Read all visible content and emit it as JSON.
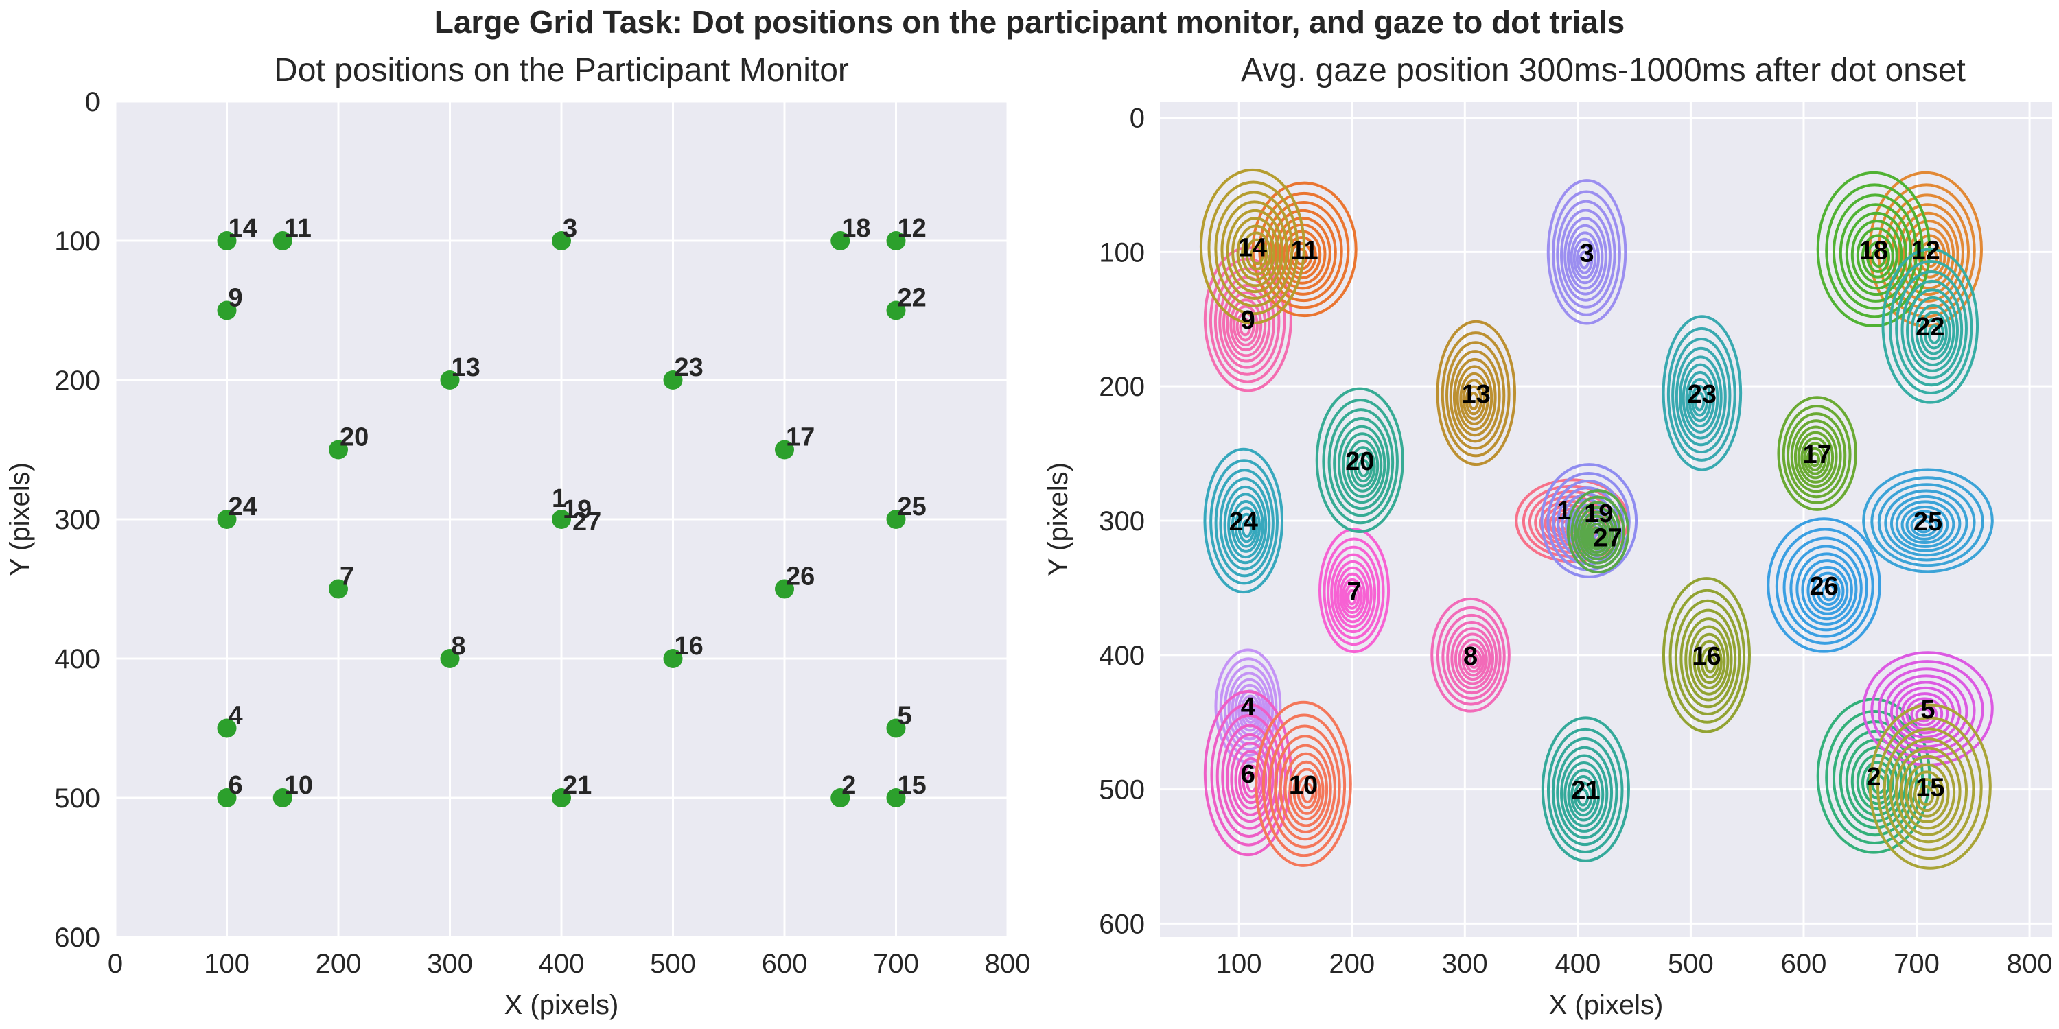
{
  "suptitle": "Large Grid Task: Dot positions on the participant monitor, and gaze to dot trials",
  "chart_data": [
    {
      "type": "scatter",
      "title": "Dot positions on the Participant Monitor",
      "xlabel": "X (pixels)",
      "ylabel": "Y (pixels)",
      "xlim": [
        0,
        800
      ],
      "ylim": [
        600,
        0
      ],
      "xticks": [
        0,
        100,
        200,
        300,
        400,
        500,
        600,
        700,
        800
      ],
      "yticks": [
        0,
        100,
        200,
        300,
        400,
        500,
        600
      ],
      "grid": true,
      "marker_color": "#2ca02c",
      "points": [
        {
          "label": "1",
          "x": 400,
          "y": 300
        },
        {
          "label": "2",
          "x": 650,
          "y": 500
        },
        {
          "label": "3",
          "x": 400,
          "y": 100
        },
        {
          "label": "4",
          "x": 100,
          "y": 450
        },
        {
          "label": "5",
          "x": 700,
          "y": 450
        },
        {
          "label": "6",
          "x": 100,
          "y": 500
        },
        {
          "label": "7",
          "x": 200,
          "y": 350
        },
        {
          "label": "8",
          "x": 300,
          "y": 400
        },
        {
          "label": "9",
          "x": 100,
          "y": 150
        },
        {
          "label": "10",
          "x": 150,
          "y": 500
        },
        {
          "label": "11",
          "x": 150,
          "y": 100
        },
        {
          "label": "12",
          "x": 700,
          "y": 100
        },
        {
          "label": "13",
          "x": 300,
          "y": 200
        },
        {
          "label": "14",
          "x": 100,
          "y": 100
        },
        {
          "label": "15",
          "x": 700,
          "y": 500
        },
        {
          "label": "16",
          "x": 500,
          "y": 400
        },
        {
          "label": "17",
          "x": 600,
          "y": 250
        },
        {
          "label": "18",
          "x": 650,
          "y": 100
        },
        {
          "label": "19",
          "x": 400,
          "y": 300
        },
        {
          "label": "20",
          "x": 200,
          "y": 250
        },
        {
          "label": "21",
          "x": 400,
          "y": 500
        },
        {
          "label": "22",
          "x": 700,
          "y": 150
        },
        {
          "label": "23",
          "x": 500,
          "y": 200
        },
        {
          "label": "24",
          "x": 100,
          "y": 300
        },
        {
          "label": "25",
          "x": 700,
          "y": 300
        },
        {
          "label": "26",
          "x": 600,
          "y": 350
        },
        {
          "label": "27",
          "x": 400,
          "y": 300
        }
      ]
    },
    {
      "type": "contour",
      "title": "Avg. gaze position 300ms-1000ms after dot onset",
      "xlabel": "X (pixels)",
      "ylabel": "Y (pixels)",
      "xlim": [
        30,
        820
      ],
      "ylim": [
        610,
        -12
      ],
      "xticks": [
        100,
        200,
        300,
        400,
        500,
        600,
        700,
        800
      ],
      "yticks": [
        0,
        100,
        200,
        300,
        400,
        500,
        600
      ],
      "grid": true,
      "clusters": [
        {
          "label": "1",
          "x": 395,
          "y": 300,
          "sx": 26,
          "sy": 16,
          "color": "#f77189"
        },
        {
          "label": "2",
          "x": 662,
          "y": 490,
          "sx": 26,
          "sy": 30,
          "color": "#33b07a"
        },
        {
          "label": "3",
          "x": 408,
          "y": 100,
          "sx": 18,
          "sy": 28,
          "color": "#9b8ef0"
        },
        {
          "label": "4",
          "x": 108,
          "y": 438,
          "sx": 15,
          "sy": 22,
          "color": "#c493f5"
        },
        {
          "label": "5",
          "x": 710,
          "y": 440,
          "sx": 30,
          "sy": 22,
          "color": "#dc5ae2"
        },
        {
          "label": "6",
          "x": 108,
          "y": 488,
          "sx": 20,
          "sy": 32,
          "color": "#ee5ec6"
        },
        {
          "label": "7",
          "x": 202,
          "y": 352,
          "sx": 16,
          "sy": 24,
          "color": "#f761d3"
        },
        {
          "label": "8",
          "x": 305,
          "y": 400,
          "sx": 18,
          "sy": 22,
          "color": "#f26ab8"
        },
        {
          "label": "9",
          "x": 108,
          "y": 150,
          "sx": 20,
          "sy": 28,
          "color": "#f46db1"
        },
        {
          "label": "10",
          "x": 157,
          "y": 496,
          "sx": 22,
          "sy": 32,
          "color": "#f4775a"
        },
        {
          "label": "11",
          "x": 158,
          "y": 98,
          "sx": 24,
          "sy": 26,
          "color": "#ea7530"
        },
        {
          "label": "12",
          "x": 708,
          "y": 98,
          "sx": 26,
          "sy": 30,
          "color": "#e28935"
        },
        {
          "label": "13",
          "x": 310,
          "y": 205,
          "sx": 18,
          "sy": 28,
          "color": "#bc9031"
        },
        {
          "label": "14",
          "x": 112,
          "y": 96,
          "sx": 24,
          "sy": 30,
          "color": "#b59d2f"
        },
        {
          "label": "15",
          "x": 712,
          "y": 498,
          "sx": 28,
          "sy": 32,
          "color": "#a9a437"
        },
        {
          "label": "16",
          "x": 514,
          "y": 400,
          "sx": 20,
          "sy": 30,
          "color": "#92a332"
        },
        {
          "label": "17",
          "x": 612,
          "y": 250,
          "sx": 18,
          "sy": 22,
          "color": "#6aaa33"
        },
        {
          "label": "18",
          "x": 662,
          "y": 98,
          "sx": 26,
          "sy": 30,
          "color": "#50b233"
        },
        {
          "label": "19",
          "x": 410,
          "y": 300,
          "sx": 22,
          "sy": 22,
          "color": "#8f8cf0"
        },
        {
          "label": "20",
          "x": 207,
          "y": 255,
          "sx": 20,
          "sy": 28,
          "color": "#36ab94"
        },
        {
          "label": "21",
          "x": 407,
          "y": 500,
          "sx": 20,
          "sy": 28,
          "color": "#34a99a"
        },
        {
          "label": "22",
          "x": 712,
          "y": 155,
          "sx": 22,
          "sy": 30,
          "color": "#36ada4"
        },
        {
          "label": "23",
          "x": 510,
          "y": 205,
          "sx": 18,
          "sy": 30,
          "color": "#38a9b0"
        },
        {
          "label": "24",
          "x": 104,
          "y": 300,
          "sx": 18,
          "sy": 28,
          "color": "#37a8bd"
        },
        {
          "label": "25",
          "x": 710,
          "y": 300,
          "sx": 30,
          "sy": 20,
          "color": "#3ba3d7"
        },
        {
          "label": "26",
          "x": 618,
          "y": 348,
          "sx": 26,
          "sy": 26,
          "color": "#3a9fe2"
        },
        {
          "label": "27",
          "x": 418,
          "y": 308,
          "sx": 14,
          "sy": 16,
          "color": "#5aa84a"
        }
      ]
    }
  ]
}
